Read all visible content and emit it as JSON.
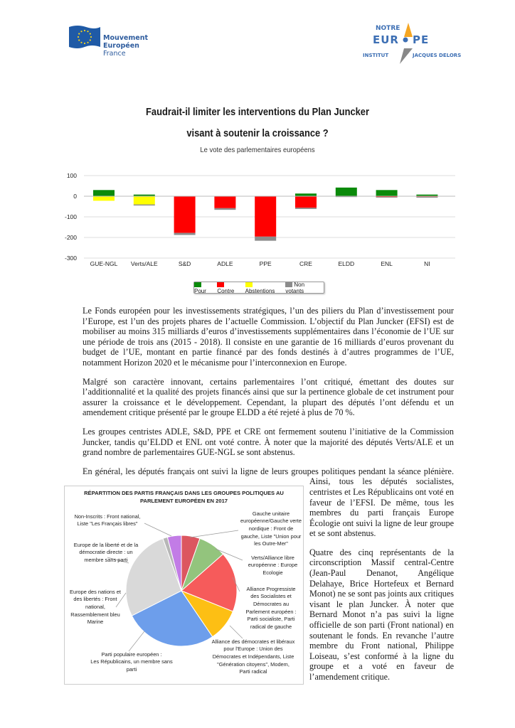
{
  "header": {
    "left_logo": {
      "line1": "Mouvement",
      "line2": "Européen",
      "line3": "France",
      "flag_color": "#1f5aa6"
    },
    "right_logo": {
      "line1": "NOTRE",
      "line2": "EUR",
      "line2b": "PE",
      "line3": "INSTITUT",
      "line3b": "JACQUES DELORS",
      "color": "#3d6fb4",
      "accent": "#f5a623"
    }
  },
  "title_line1": "Faudrait-il limiter les interventions du Plan Juncker",
  "title_line2": "visant à soutenir la croissance ?",
  "chart_data": [
    {
      "type": "bar",
      "stacked": true,
      "title": "Le vote des parlementaires européens",
      "categories": [
        "GUE-NGL",
        "Verts/ALE",
        "S&D",
        "ADLE",
        "PPE",
        "CRE",
        "ELDD",
        "ENL",
        "NI"
      ],
      "ylim": [
        -300,
        100
      ],
      "yticks": [
        100,
        0,
        -100,
        -200,
        -300
      ],
      "grid": true,
      "legend": "bottom",
      "series": [
        {
          "name": "Pour",
          "color": "#0a8a0a",
          "values": [
            30,
            8,
            0,
            0,
            0,
            13,
            42,
            30,
            8
          ]
        },
        {
          "name": "Contre",
          "color": "#ff0000",
          "values": [
            0,
            0,
            -178,
            -58,
            -196,
            -56,
            0,
            -4,
            -3
          ]
        },
        {
          "name": "Abstentions",
          "color": "#ffff00",
          "values": [
            -22,
            -40,
            0,
            0,
            0,
            0,
            0,
            0,
            0
          ]
        },
        {
          "name": "Non votants",
          "color": "#8c8c8c",
          "values": [
            0,
            -5,
            -10,
            -8,
            -20,
            -6,
            -4,
            -3,
            -4
          ]
        }
      ]
    },
    {
      "type": "pie",
      "title_line1": "RÉPARTITION DES PARTIS FRANÇAIS DANS LES GROUPES POLITIQUES AU",
      "title_line2": "PARLEMENT EUROPÉEN EN 2017",
      "slices": [
        {
          "label1": "Gauche unitaire",
          "label2": "européenne/Gauche verte",
          "label3": "nordique : Front de",
          "label4": "gauche, Liste \"Union pour",
          "label5": "les Outre-Mer\"",
          "value": 4,
          "color": "#dc5660"
        },
        {
          "label1": "Verts/Alliance libre",
          "label2": "européenne : Europe",
          "label3": "Ecologie",
          "value": 6,
          "color": "#93c47d"
        },
        {
          "label1": "Alliance Progressiste",
          "label2": "des Socialistes et",
          "label3": "Démocrates au",
          "label4": "Parlement européen :",
          "label5": "Parti socialiste, Parti",
          "label6": "radical de gauche",
          "value": 13,
          "color": "#f65b5b"
        },
        {
          "label1": "Alliance des démocrates et libéraux",
          "label2": "pour l'Europe : Union des",
          "label3": "Démocrates et Indépendants, Liste",
          "label4": "\"Génération citoyens\", Modem,",
          "label5": "Parti radical",
          "value": 7,
          "color": "#fdbf14"
        },
        {
          "label1": "Parti populaire européen :",
          "label2": "Les Républicains, un membre sans",
          "label3": "parti",
          "value": 20,
          "color": "#6d9eeb"
        },
        {
          "label1": "Europe des nations et",
          "label2": "des libertés : Front",
          "label3": "national,",
          "label4": "Rassemblement bleu",
          "label5": "Marine",
          "value": 20,
          "color": "#d9d9d9"
        },
        {
          "label1": "Europe de la liberté et de la",
          "label2": "démocratie directe : un",
          "label3": "membre sans parti",
          "value": 1,
          "color": "#b7b7b7"
        },
        {
          "label1": "Non-Inscrits : Front national,",
          "label2": "Liste \"Les Français libres\"",
          "value": 3,
          "color": "#c27ce6"
        }
      ]
    }
  ],
  "body": {
    "p1": "Le Fonds européen pour les investissements stratégiques, l’un des piliers du Plan d’investissement pour l’Europe, est l’un des projets phares de l’actuelle Commission. L’objectif du Plan Juncker (EFSI) est de mobiliser au moins 315 milliards d’euros d’investissements supplémentaires dans l’économie de l’UE sur une période de trois ans (2015 - 2018). Il consiste en une garantie de 16 milliards d’euros provenant du budget de l’UE, montant en partie financé par des fonds destinés à d’autres programmes de l’UE, notamment Horizon 2020 et le mécanisme pour l’interconnexion en Europe.",
    "p2": "Malgré son caractère innovant, certains parlementaires l’ont critiqué, émettant des doutes sur l’additionnalité et la qualité des projets financés ainsi que sur la pertinence globale de cet instrument pour assurer la croissance et le développement. Cependant, la plupart des députés l’ont défendu et un amendement critique présenté par le groupe ELDD a été rejeté à plus de 70 %.",
    "p3": "Les groupes centristes ADLE, S&D, PPE et CRE ont fermement soutenu l’initiative de la Commission Juncker, tandis qu’ELDD et ENL ont voté contre. À noter que la majorité des députés Verts/ALE et un grand nombre de parlementaires GUE-NGL se sont abstenus.",
    "p4": "En général, les députés français ont suivi la ligne de leurs groupes politiques pendant la séance plénière. Ainsi, tous les députés socialistes, centristes et Les Républicains ont voté en faveur de l’EFSI. De même, tous les membres du parti français Europe Écologie ont suivi la ligne de leur groupe et se sont abstenus.",
    "p5": "Quatre des cinq représentants de la circonscription Massif central-Centre (Jean-Paul Denanot, Angélique Delahaye, Brice Hortefeux et Bernard Monot) ne se sont pas joints aux critiques visant le plan Juncker. À noter que Bernard Monot n’a pas suivi la ligne officielle de son parti (Front national) en soutenant le fonds. En revanche l’autre membre du Front national, Philippe Loiseau, s’est conformé à la ligne du groupe et a voté en faveur de l’amendement critique."
  }
}
